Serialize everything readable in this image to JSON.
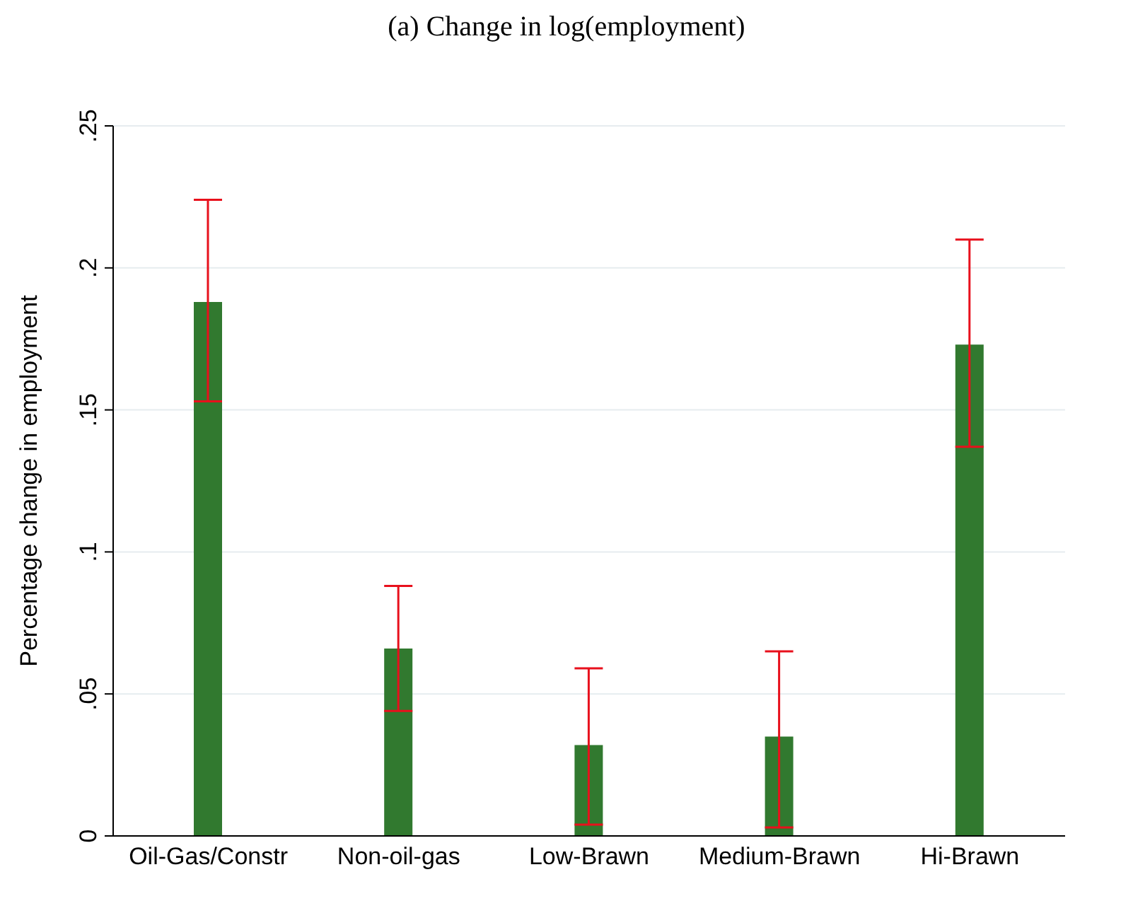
{
  "chart_data": {
    "type": "bar",
    "title": "(a) Change in log(employment)",
    "ylabel": "Percentage change in employment",
    "categories": [
      "Oil-Gas/Constr",
      "Non-oil-gas",
      "Low-Brawn",
      "Medium-Brawn",
      "Hi-Brawn"
    ],
    "values": [
      0.188,
      0.066,
      0.032,
      0.035,
      0.173
    ],
    "errors": [
      [
        0.153,
        0.224
      ],
      [
        0.044,
        0.088
      ],
      [
        0.004,
        0.059
      ],
      [
        0.003,
        0.065
      ],
      [
        0.137,
        0.21
      ]
    ],
    "color": "#31792f",
    "ylim": [
      0,
      0.25
    ],
    "yticks": [
      0,
      {
        "value": 0.05,
        "label": ".05"
      },
      {
        "value": 0.1,
        "label": ".1"
      },
      {
        "value": 0.15,
        "label": ".15"
      },
      {
        "value": 0.2,
        "label": ".2"
      },
      {
        "value": 0.25,
        "label": ".25"
      }
    ],
    "grid": "y"
  }
}
